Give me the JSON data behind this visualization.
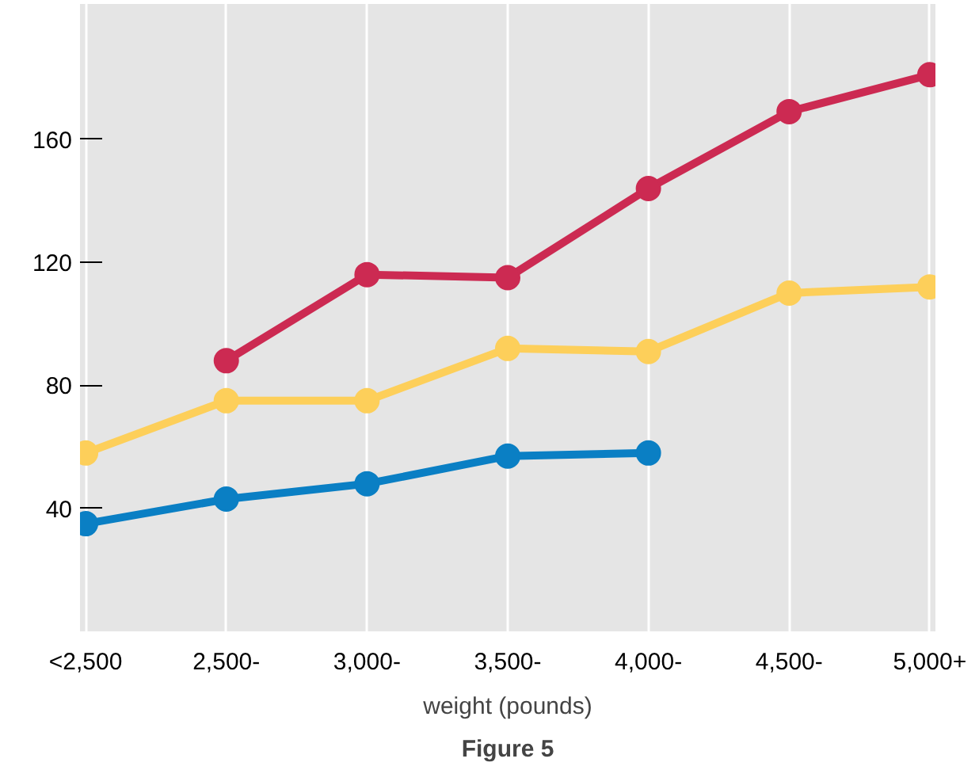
{
  "chart_data": {
    "type": "line",
    "title": "Figure 5",
    "xlabel": "weight (pounds)",
    "categories": [
      "<2,500",
      "2,500-",
      "3,000-",
      "3,500-",
      "4,000-",
      "4,500-",
      "5,000+"
    ],
    "series": [
      {
        "color": "#cc2a52",
        "values": [
          null,
          88,
          116,
          115,
          144,
          169,
          181
        ]
      },
      {
        "color": "#fdcf5a",
        "values": [
          58,
          75,
          75,
          92,
          91,
          110,
          112
        ]
      },
      {
        "color": "#0a7fc4",
        "values": [
          35,
          43,
          48,
          57,
          58,
          null,
          null
        ]
      }
    ],
    "ylim": [
      0,
      204
    ],
    "yticks": [
      40,
      80,
      120,
      160
    ],
    "grid": "x",
    "marker": "circle",
    "line_style": "solid"
  }
}
